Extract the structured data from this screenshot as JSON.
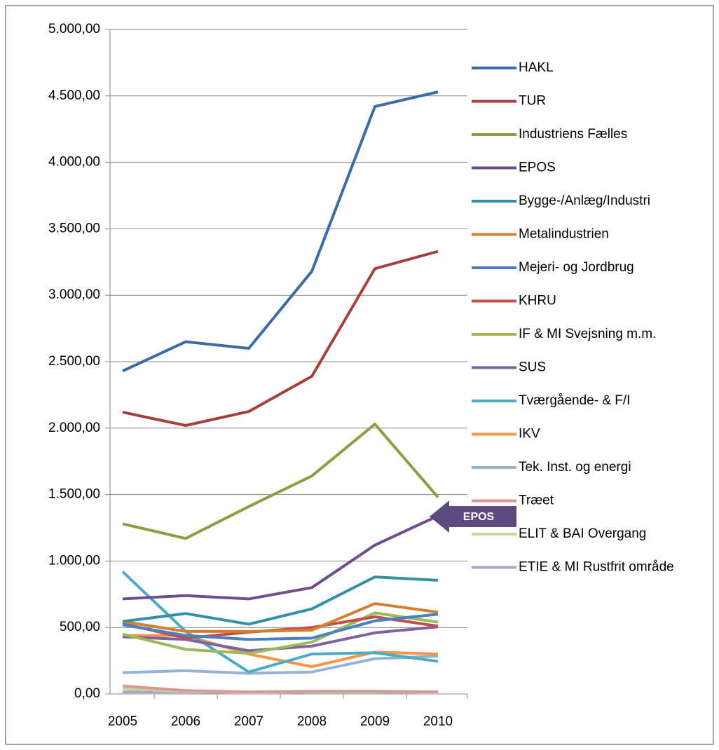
{
  "chart_data": {
    "type": "line",
    "categories": [
      "2005",
      "2006",
      "2007",
      "2008",
      "2009",
      "2010"
    ],
    "ylim": [
      0,
      5000
    ],
    "yticks": [
      {
        "value": 0,
        "label": "0,00"
      },
      {
        "value": 500,
        "label": "500,00"
      },
      {
        "value": 1000,
        "label": "1.000,00"
      },
      {
        "value": 1500,
        "label": "1.500,00"
      },
      {
        "value": 2000,
        "label": "2.000,00"
      },
      {
        "value": 2500,
        "label": "2.500,00"
      },
      {
        "value": 3000,
        "label": "3.000,00"
      },
      {
        "value": 3500,
        "label": "3.500,00"
      },
      {
        "value": 4000,
        "label": "4.000,00"
      },
      {
        "value": 4500,
        "label": "4.500,00"
      },
      {
        "value": 5000,
        "label": "5.000,00"
      }
    ],
    "grid": true,
    "legend": "right",
    "annotations": [
      {
        "text": "EPOS"
      }
    ],
    "series": [
      {
        "name": "HAKL",
        "color": "#3c6aa5",
        "values": [
          2430,
          2650,
          2600,
          3180,
          4420,
          4530
        ]
      },
      {
        "name": "TUR",
        "color": "#a5403d",
        "values": [
          2120,
          2020,
          2125,
          2390,
          3200,
          3330
        ]
      },
      {
        "name": "Industriens Fælles",
        "color": "#86a044",
        "values": [
          1280,
          1170,
          1410,
          1640,
          2030,
          1480
        ]
      },
      {
        "name": "EPOS",
        "color": "#6b4e8a",
        "values": [
          715,
          740,
          715,
          800,
          1120,
          1340
        ]
      },
      {
        "name": "Bygge-/Anlæg/Industri",
        "color": "#3490a8",
        "values": [
          545,
          605,
          525,
          640,
          880,
          855
        ]
      },
      {
        "name": "Metalindustrien",
        "color": "#d2802f",
        "values": [
          545,
          470,
          470,
          480,
          680,
          615
        ]
      },
      {
        "name": "Mejeri- og Jordbrug",
        "color": "#4a7fc2",
        "values": [
          520,
          440,
          410,
          420,
          550,
          600
        ]
      },
      {
        "name": "KHRU",
        "color": "#c44e4a",
        "values": [
          530,
          420,
          465,
          500,
          580,
          510
        ]
      },
      {
        "name": "IF & MI Svejsning m.m.",
        "color": "#9bbb59",
        "values": [
          450,
          335,
          305,
          390,
          610,
          540
        ]
      },
      {
        "name": "SUS",
        "color": "#7f63a1",
        "values": [
          430,
          410,
          325,
          360,
          460,
          505
        ]
      },
      {
        "name": "Tværgående- & F/I",
        "color": "#4bacc6",
        "values": [
          920,
          470,
          165,
          300,
          310,
          245
        ]
      },
      {
        "name": "IKV",
        "color": "#f79646",
        "values": [
          440,
          440,
          300,
          205,
          315,
          300
        ]
      },
      {
        "name": "Tek. Inst. og energi",
        "color": "#95b3d7",
        "values": [
          160,
          175,
          155,
          165,
          265,
          285
        ]
      },
      {
        "name": "Træet",
        "color": "#d99694",
        "values": [
          60,
          25,
          15,
          20,
          20,
          15
        ]
      },
      {
        "name": "ELIT & BAI Overgang",
        "color": "#c3d69b",
        "values": [
          40,
          20,
          10,
          15,
          15,
          10
        ]
      },
      {
        "name": "ETIE & MI Rustfrit område",
        "color": "#b2a2c7",
        "values": [
          15,
          15,
          10,
          15,
          15,
          10
        ]
      }
    ]
  }
}
